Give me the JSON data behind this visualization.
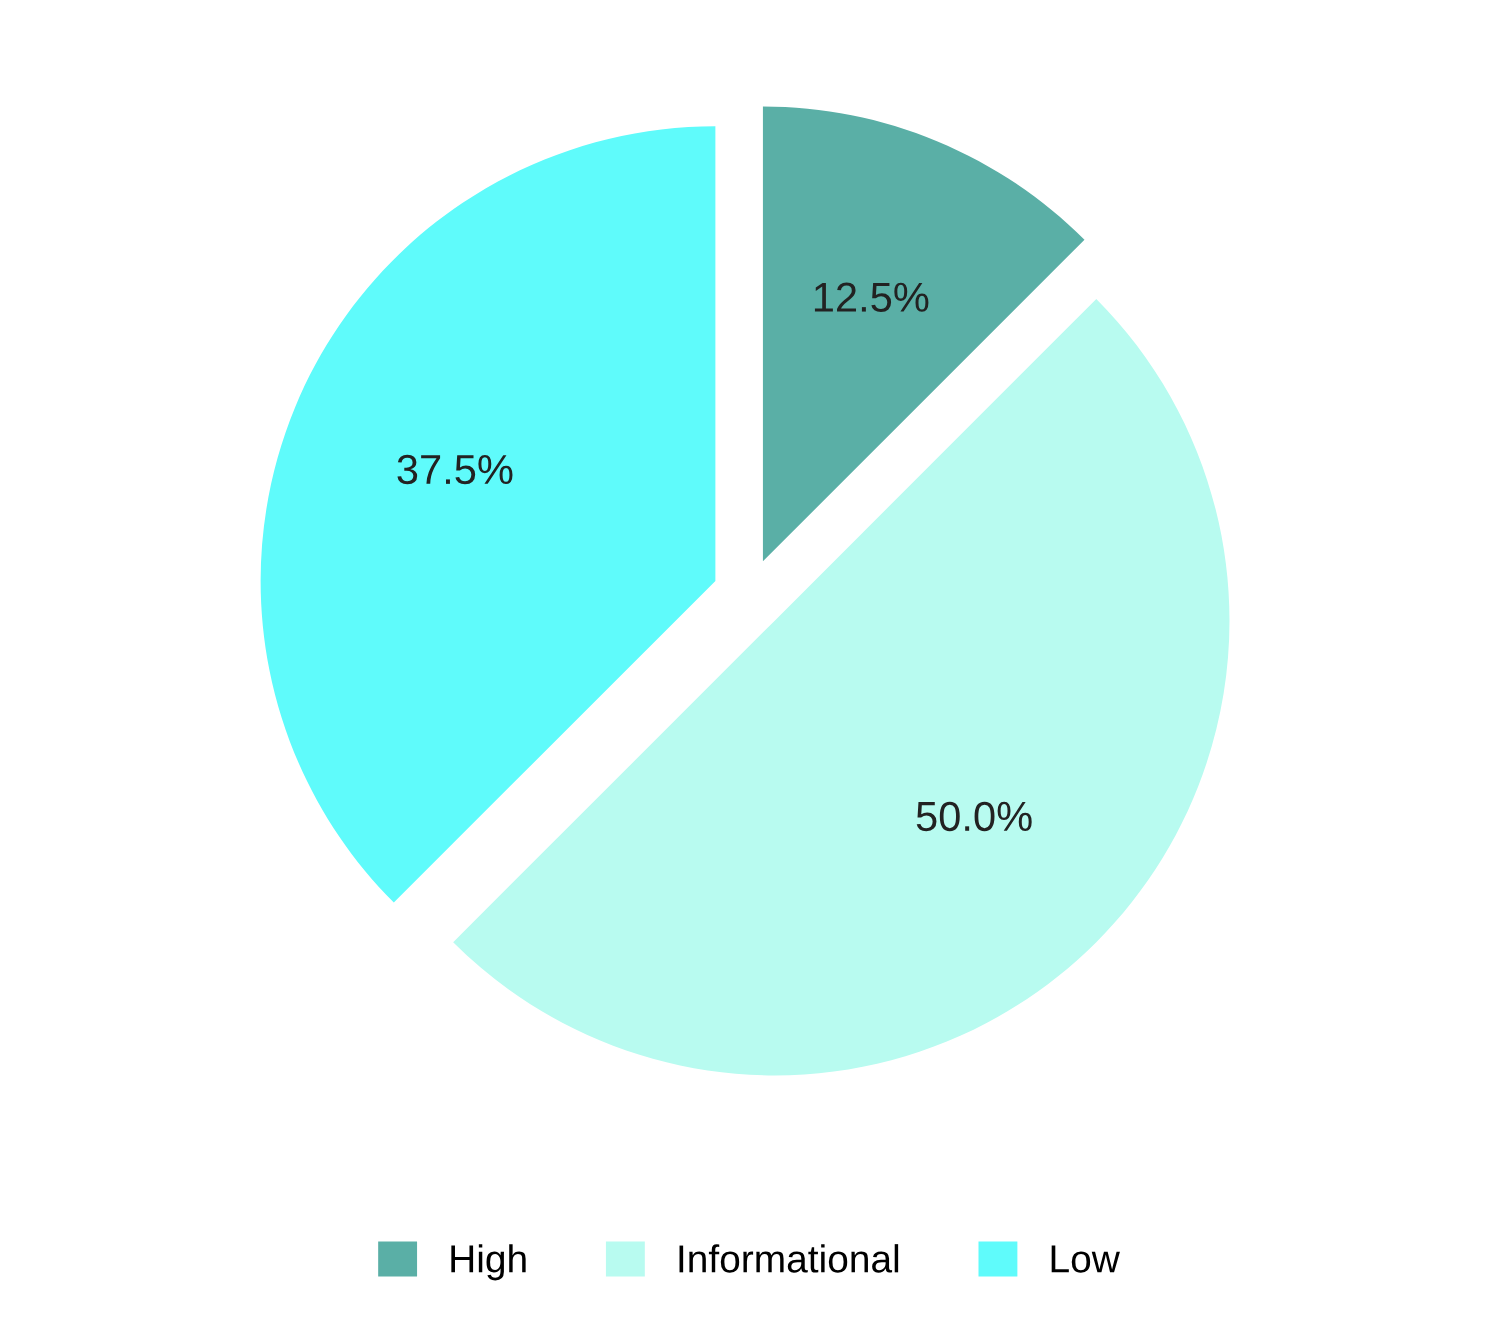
{
  "chart_data": {
    "type": "pie",
    "categories": [
      "High",
      "Informational",
      "Low"
    ],
    "values": [
      12.5,
      50.0,
      37.5
    ],
    "colors": [
      "#5aafa6",
      "#b8fbf0",
      "#5ffbfb"
    ],
    "value_labels": [
      "12.5%",
      "50.0%",
      "37.5%"
    ],
    "legend": "bottom"
  }
}
